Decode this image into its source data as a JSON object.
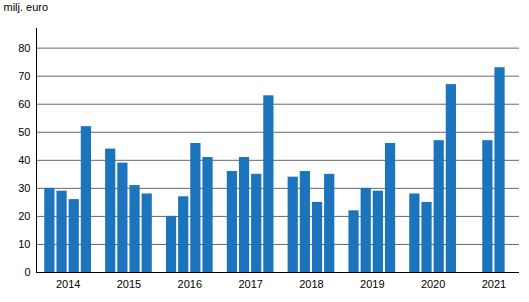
{
  "chart_data": {
    "type": "bar",
    "y_label": "milj. euro",
    "categories": [
      "2014",
      "2015",
      "2016",
      "2017",
      "2018",
      "2019",
      "2020",
      "2021"
    ],
    "values": [
      [
        30,
        29,
        26,
        52
      ],
      [
        44,
        39,
        31,
        28
      ],
      [
        20,
        27,
        46,
        41
      ],
      [
        36,
        41,
        35,
        63
      ],
      [
        34,
        36,
        25,
        35
      ],
      [
        22,
        30,
        29,
        46
      ],
      [
        28,
        25,
        47,
        67
      ],
      [
        null,
        47,
        73,
        null
      ]
    ],
    "color": "#1c75bc",
    "ylim": [
      0,
      87
    ],
    "yticks": [
      0,
      10,
      20,
      30,
      40,
      50,
      60,
      70,
      80
    ],
    "grid": true
  }
}
